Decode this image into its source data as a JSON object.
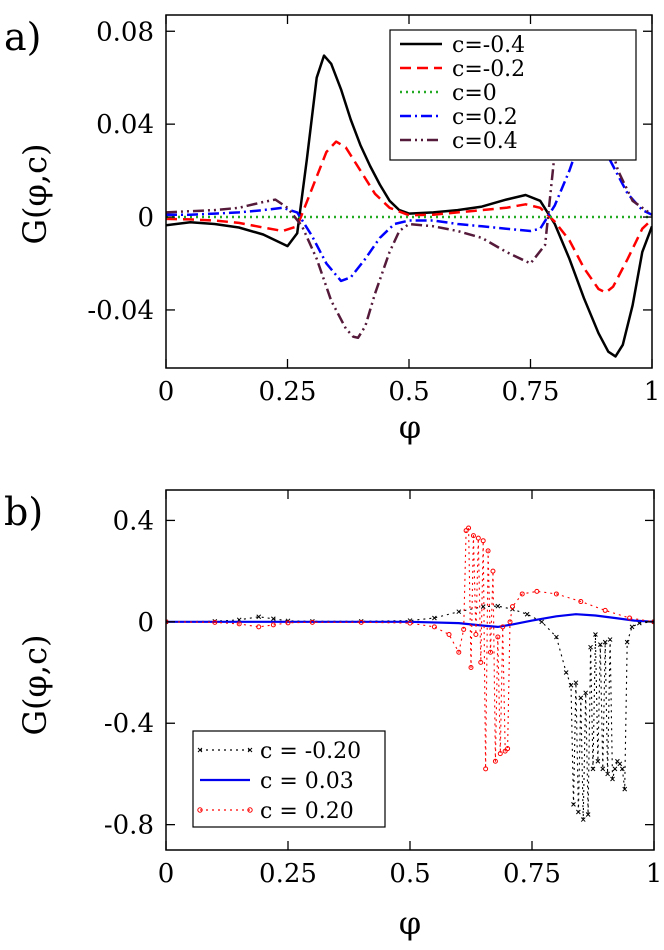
{
  "chart_data": [
    {
      "panel_label": "a)",
      "type": "line",
      "xlabel": "φ",
      "ylabel": "G(φ,c)",
      "xlim": [
        0,
        1
      ],
      "ylim": [
        -0.065,
        0.087
      ],
      "xticks": [
        0,
        0.25,
        0.5,
        0.75,
        1
      ],
      "xtick_labels": [
        "0",
        "0.25",
        "0.5",
        "0.75",
        "1"
      ],
      "yticks": [
        -0.04,
        0,
        0.04,
        0.08
      ],
      "ytick_labels": [
        "-0.04",
        "0",
        "0.04",
        "0.08"
      ],
      "grid": false,
      "legend_position": "top-right",
      "series": [
        {
          "name": "c=-0.4",
          "color": "#000000",
          "dash": "solid",
          "points": [
            [
              0,
              -0.0035
            ],
            [
              0.05,
              -0.0022
            ],
            [
              0.1,
              -0.003
            ],
            [
              0.15,
              -0.0045
            ],
            [
              0.2,
              -0.0075
            ],
            [
              0.25,
              -0.0125
            ],
            [
              0.27,
              -0.007
            ],
            [
              0.29,
              0.025
            ],
            [
              0.31,
              0.06
            ],
            [
              0.325,
              0.0695
            ],
            [
              0.34,
              0.066
            ],
            [
              0.36,
              0.055
            ],
            [
              0.38,
              0.042
            ],
            [
              0.4,
              0.031
            ],
            [
              0.42,
              0.022
            ],
            [
              0.44,
              0.014
            ],
            [
              0.46,
              0.007
            ],
            [
              0.48,
              0.003
            ],
            [
              0.5,
              0.0015
            ],
            [
              0.55,
              0.002
            ],
            [
              0.6,
              0.003
            ],
            [
              0.65,
              0.0045
            ],
            [
              0.7,
              0.0075
            ],
            [
              0.74,
              0.0095
            ],
            [
              0.77,
              0.007
            ],
            [
              0.8,
              -0.003
            ],
            [
              0.83,
              -0.018
            ],
            [
              0.86,
              -0.035
            ],
            [
              0.89,
              -0.05
            ],
            [
              0.91,
              -0.058
            ],
            [
              0.925,
              -0.06
            ],
            [
              0.94,
              -0.055
            ],
            [
              0.96,
              -0.038
            ],
            [
              0.98,
              -0.015
            ],
            [
              1,
              -0.004
            ]
          ]
        },
        {
          "name": "c=-0.2",
          "color": "#ff0000",
          "dash": "dashed",
          "points": [
            [
              0,
              -0.0008
            ],
            [
              0.05,
              -0.001
            ],
            [
              0.1,
              -0.0015
            ],
            [
              0.15,
              -0.0025
            ],
            [
              0.2,
              -0.0045
            ],
            [
              0.24,
              -0.006
            ],
            [
              0.27,
              -0.004
            ],
            [
              0.3,
              0.012
            ],
            [
              0.33,
              0.028
            ],
            [
              0.35,
              0.0325
            ],
            [
              0.37,
              0.03
            ],
            [
              0.4,
              0.02
            ],
            [
              0.43,
              0.01
            ],
            [
              0.46,
              0.004
            ],
            [
              0.5,
              0.0008
            ],
            [
              0.55,
              0.001
            ],
            [
              0.6,
              0.002
            ],
            [
              0.65,
              0.003
            ],
            [
              0.7,
              0.004
            ],
            [
              0.74,
              0.0055
            ],
            [
              0.77,
              0.004
            ],
            [
              0.8,
              -0.002
            ],
            [
              0.83,
              -0.01
            ],
            [
              0.86,
              -0.022
            ],
            [
              0.89,
              -0.031
            ],
            [
              0.905,
              -0.0325
            ],
            [
              0.92,
              -0.03
            ],
            [
              0.95,
              -0.018
            ],
            [
              0.98,
              -0.005
            ],
            [
              1,
              -0.001
            ]
          ]
        },
        {
          "name": "c=0",
          "color": "#22aa22",
          "dash": "dotted",
          "points": [
            [
              0,
              0
            ],
            [
              1,
              0
            ]
          ]
        },
        {
          "name": "c=0.2",
          "color": "#0000ff",
          "dash": "dashdot",
          "points": [
            [
              0,
              0.001
            ],
            [
              0.05,
              0.001
            ],
            [
              0.1,
              0.0015
            ],
            [
              0.15,
              0.002
            ],
            [
              0.2,
              0.003
            ],
            [
              0.24,
              0.004
            ],
            [
              0.27,
              0.002
            ],
            [
              0.3,
              -0.008
            ],
            [
              0.33,
              -0.02
            ],
            [
              0.36,
              -0.0275
            ],
            [
              0.38,
              -0.026
            ],
            [
              0.41,
              -0.018
            ],
            [
              0.44,
              -0.009
            ],
            [
              0.47,
              -0.003
            ],
            [
              0.5,
              -0.0015
            ],
            [
              0.55,
              -0.0015
            ],
            [
              0.6,
              -0.003
            ],
            [
              0.65,
              -0.004
            ],
            [
              0.7,
              -0.005
            ],
            [
              0.75,
              -0.006
            ],
            [
              0.77,
              -0.005
            ],
            [
              0.8,
              0.005
            ],
            [
              0.83,
              0.02
            ],
            [
              0.85,
              0.032
            ],
            [
              0.87,
              0.0375
            ],
            [
              0.89,
              0.034
            ],
            [
              0.92,
              0.022
            ],
            [
              0.95,
              0.01
            ],
            [
              0.98,
              0.003
            ],
            [
              1,
              0.001
            ]
          ]
        },
        {
          "name": "c=0.4",
          "color": "#551a3a",
          "dash": "dashdotdot",
          "points": [
            [
              0,
              0.002
            ],
            [
              0.05,
              0.0025
            ],
            [
              0.1,
              0.003
            ],
            [
              0.15,
              0.004
            ],
            [
              0.2,
              0.0065
            ],
            [
              0.225,
              0.0075
            ],
            [
              0.25,
              0.004
            ],
            [
              0.28,
              -0.004
            ],
            [
              0.31,
              -0.018
            ],
            [
              0.34,
              -0.036
            ],
            [
              0.37,
              -0.048
            ],
            [
              0.385,
              -0.0515
            ],
            [
              0.395,
              -0.052
            ],
            [
              0.41,
              -0.047
            ],
            [
              0.43,
              -0.033
            ],
            [
              0.46,
              -0.015
            ],
            [
              0.48,
              -0.006
            ],
            [
              0.5,
              -0.003
            ],
            [
              0.55,
              -0.004
            ],
            [
              0.6,
              -0.006
            ],
            [
              0.65,
              -0.009
            ],
            [
              0.7,
              -0.015
            ],
            [
              0.75,
              -0.02
            ],
            [
              0.78,
              -0.012
            ],
            [
              0.8,
              0.028
            ],
            [
              0.82,
              0.065
            ],
            [
              0.84,
              0.079
            ],
            [
              0.86,
              0.075
            ],
            [
              0.88,
              0.06
            ],
            [
              0.9,
              0.042
            ],
            [
              0.93,
              0.02
            ],
            [
              0.96,
              0.007
            ],
            [
              1,
              0.001
            ]
          ]
        }
      ]
    },
    {
      "panel_label": "b)",
      "type": "line",
      "xlabel": "φ",
      "ylabel": "G(φ,c)",
      "xlim": [
        0,
        1
      ],
      "ylim": [
        -0.9,
        0.52
      ],
      "xticks": [
        0,
        0.25,
        0.5,
        0.75,
        1
      ],
      "xtick_labels": [
        "0",
        "0.25",
        "0.5",
        "0.75",
        "1"
      ],
      "yticks": [
        -0.8,
        -0.4,
        0,
        0.4
      ],
      "ytick_labels": [
        "-0.8",
        "-0.4",
        "0",
        "0.4"
      ],
      "grid": false,
      "legend_position": "bottom-left",
      "series": [
        {
          "name": "c = -0.20",
          "color": "#000000",
          "dash": "dotted",
          "marker": "cross",
          "points": [
            [
              0,
              0
            ],
            [
              0.1,
              0.002
            ],
            [
              0.15,
              0.008
            ],
            [
              0.19,
              0.02
            ],
            [
              0.22,
              0.012
            ],
            [
              0.25,
              0.004
            ],
            [
              0.3,
              0.002
            ],
            [
              0.4,
              0.002
            ],
            [
              0.5,
              0.005
            ],
            [
              0.55,
              0.015
            ],
            [
              0.6,
              0.04
            ],
            [
              0.65,
              0.06
            ],
            [
              0.68,
              0.062
            ],
            [
              0.71,
              0.05
            ],
            [
              0.74,
              0.03
            ],
            [
              0.77,
              0.0
            ],
            [
              0.8,
              -0.06
            ],
            [
              0.82,
              -0.2
            ],
            [
              0.83,
              -0.25
            ],
            [
              0.835,
              -0.72
            ],
            [
              0.84,
              -0.24
            ],
            [
              0.845,
              -0.75
            ],
            [
              0.85,
              -0.3
            ],
            [
              0.855,
              -0.78
            ],
            [
              0.86,
              -0.28
            ],
            [
              0.865,
              -0.76
            ],
            [
              0.87,
              -0.1
            ],
            [
              0.875,
              -0.58
            ],
            [
              0.88,
              -0.05
            ],
            [
              0.885,
              -0.55
            ],
            [
              0.89,
              -0.09
            ],
            [
              0.895,
              -0.58
            ],
            [
              0.9,
              -0.08
            ],
            [
              0.905,
              -0.6
            ],
            [
              0.91,
              -0.07
            ],
            [
              0.915,
              -0.62
            ],
            [
              0.92,
              -0.58
            ],
            [
              0.925,
              -0.55
            ],
            [
              0.93,
              -0.56
            ],
            [
              0.935,
              -0.58
            ],
            [
              0.94,
              -0.66
            ],
            [
              0.945,
              -0.08
            ],
            [
              0.955,
              -0.02
            ],
            [
              0.97,
              -0.005
            ],
            [
              1,
              0
            ]
          ]
        },
        {
          "name": "c = 0.03",
          "color": "#0000ee",
          "dash": "solid",
          "points": [
            [
              0,
              0
            ],
            [
              0.2,
              0.0
            ],
            [
              0.3,
              0.0
            ],
            [
              0.4,
              0.0
            ],
            [
              0.5,
              0.0
            ],
            [
              0.6,
              -0.005
            ],
            [
              0.65,
              -0.015
            ],
            [
              0.68,
              -0.02
            ],
            [
              0.71,
              -0.01
            ],
            [
              0.75,
              0.005
            ],
            [
              0.8,
              0.022
            ],
            [
              0.84,
              0.03
            ],
            [
              0.88,
              0.025
            ],
            [
              0.92,
              0.015
            ],
            [
              0.96,
              0.005
            ],
            [
              1,
              0
            ]
          ]
        },
        {
          "name": "c = 0.20",
          "color": "#ff0000",
          "dash": "dotted",
          "marker": "circle",
          "points": [
            [
              0,
              0
            ],
            [
              0.1,
              -0.002
            ],
            [
              0.15,
              -0.008
            ],
            [
              0.19,
              -0.02
            ],
            [
              0.22,
              -0.012
            ],
            [
              0.25,
              -0.004
            ],
            [
              0.3,
              -0.002
            ],
            [
              0.4,
              -0.002
            ],
            [
              0.5,
              -0.005
            ],
            [
              0.55,
              -0.02
            ],
            [
              0.58,
              -0.05
            ],
            [
              0.6,
              -0.12
            ],
            [
              0.61,
              -0.03
            ],
            [
              0.615,
              0.36
            ],
            [
              0.62,
              0.37
            ],
            [
              0.625,
              -0.18
            ],
            [
              0.63,
              0.34
            ],
            [
              0.635,
              -0.05
            ],
            [
              0.64,
              0.33
            ],
            [
              0.645,
              -0.16
            ],
            [
              0.65,
              0.32
            ],
            [
              0.655,
              -0.58
            ],
            [
              0.66,
              0.28
            ],
            [
              0.665,
              -0.12
            ],
            [
              0.67,
              0.2
            ],
            [
              0.675,
              -0.55
            ],
            [
              0.68,
              -0.06
            ],
            [
              0.685,
              -0.52
            ],
            [
              0.69,
              -0.02
            ],
            [
              0.695,
              -0.51
            ],
            [
              0.7,
              -0.5
            ],
            [
              0.705,
              0.0
            ],
            [
              0.71,
              0.06
            ],
            [
              0.73,
              0.11
            ],
            [
              0.76,
              0.12
            ],
            [
              0.8,
              0.11
            ],
            [
              0.85,
              0.08
            ],
            [
              0.9,
              0.045
            ],
            [
              0.95,
              0.015
            ],
            [
              1,
              0
            ]
          ]
        }
      ]
    }
  ]
}
